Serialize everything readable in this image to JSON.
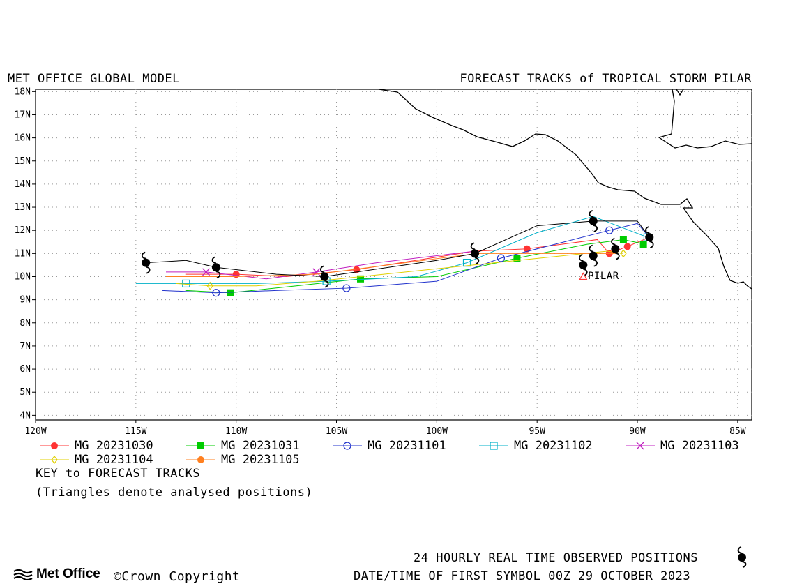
{
  "header": {
    "left_title": "MET OFFICE GLOBAL MODEL",
    "right_title": "FORECAST TRACKS of TROPICAL STORM PILAR"
  },
  "storm_label": "PILAR",
  "legend": {
    "entries": [
      {
        "label": "MG 20231030",
        "color": "#ff3333",
        "marker": "filled-circle"
      },
      {
        "label": "MG 20231031",
        "color": "#00cc00",
        "marker": "filled-square"
      },
      {
        "label": "MG 20231101",
        "color": "#2233cc",
        "marker": "open-circle"
      },
      {
        "label": "MG 20231102",
        "color": "#00b0c8",
        "marker": "open-square"
      },
      {
        "label": "MG 20231103",
        "color": "#c020c0",
        "marker": "cross"
      },
      {
        "label": "MG 20231104",
        "color": "#e0d000",
        "marker": "open-diamond"
      },
      {
        "label": "MG 20231105",
        "color": "#ff8020",
        "marker": "filled-circle"
      }
    ],
    "key_title": "KEY to FORECAST TRACKS",
    "key_note": "(Triangles denote analysed positions)"
  },
  "footer": {
    "observed": "24 HOURLY REAL TIME OBSERVED POSITIONS",
    "datetime": "DATE/TIME OF FIRST SYMBOL 00Z 29 OCTOBER 2023",
    "brand": "Met Office",
    "copyright": "©Crown Copyright"
  },
  "chart_data": {
    "type": "map-tracks",
    "title": "FORECAST TRACKS of TROPICAL STORM PILAR",
    "x_ticks": [
      "120W",
      "115W",
      "110W",
      "105W",
      "100W",
      "95W",
      "90W",
      "85W"
    ],
    "y_ticks": [
      "4N",
      "5N",
      "6N",
      "7N",
      "8N",
      "9N",
      "10N",
      "11N",
      "12N",
      "13N",
      "14N",
      "15N",
      "16N",
      "17N",
      "18N"
    ],
    "lon_range": [
      -120,
      -84.3
    ],
    "lat_range": [
      3.8,
      18.1
    ],
    "grid": true,
    "analysed_position": {
      "lon": -92.7,
      "lat": 10.0
    },
    "observed_track": [
      {
        "lon": -89.4,
        "lat": 11.7
      },
      {
        "lon": -91.1,
        "lat": 11.2
      },
      {
        "lon": -92.2,
        "lat": 10.9
      },
      {
        "lon": -92.7,
        "lat": 10.5
      },
      {
        "lon": -92.2,
        "lat": 12.4
      },
      {
        "lon": -98.1,
        "lat": 11.0
      },
      {
        "lon": -105.6,
        "lat": 10.0
      },
      {
        "lon": -111.0,
        "lat": 10.4
      },
      {
        "lon": -114.5,
        "lat": 10.6
      }
    ],
    "observed_line": [
      [
        -89.4,
        11.7
      ],
      [
        -90.0,
        12.4
      ],
      [
        -92.2,
        12.4
      ],
      [
        -95.0,
        12.2
      ],
      [
        -98.1,
        11.0
      ],
      [
        -100.0,
        10.7
      ],
      [
        -105.6,
        10.0
      ],
      [
        -108.0,
        10.1
      ],
      [
        -111.0,
        10.4
      ],
      [
        -112.5,
        10.7
      ],
      [
        -114.5,
        10.6
      ]
    ],
    "series": [
      {
        "name": "MG 20231030",
        "color": "#ff3333",
        "marker": "filled-circle",
        "line": [
          [
            -89.4,
            11.7
          ],
          [
            -90.5,
            11.3
          ],
          [
            -91.4,
            11.0
          ],
          [
            -92.0,
            11.6
          ],
          [
            -95.5,
            11.2
          ],
          [
            -98.1,
            11.1
          ],
          [
            -104.0,
            10.3
          ],
          [
            -107.5,
            10.0
          ],
          [
            -110.0,
            10.1
          ],
          [
            -112.5,
            10.1
          ]
        ],
        "markers": [
          [
            -90.5,
            11.3
          ],
          [
            -91.4,
            11.0
          ],
          [
            -95.5,
            11.2
          ],
          [
            -98.1,
            11.0
          ],
          [
            -104.0,
            10.3
          ],
          [
            -110.0,
            10.1
          ]
        ]
      },
      {
        "name": "MG 20231031",
        "color": "#00cc00",
        "marker": "filled-square",
        "line": [
          [
            -89.6,
            11.4
          ],
          [
            -90.7,
            11.6
          ],
          [
            -92.5,
            11.4
          ],
          [
            -96.0,
            10.8
          ],
          [
            -100.0,
            10.0
          ],
          [
            -103.8,
            9.9
          ],
          [
            -107.0,
            9.6
          ],
          [
            -110.3,
            9.3
          ],
          [
            -112.5,
            9.4
          ]
        ],
        "markers": [
          [
            -89.7,
            11.4
          ],
          [
            -90.7,
            11.6
          ],
          [
            -96.0,
            10.8
          ],
          [
            -103.8,
            9.9
          ],
          [
            -110.3,
            9.3
          ]
        ]
      },
      {
        "name": "MG 20231101",
        "color": "#2233cc",
        "marker": "open-circle",
        "line": [
          [
            -89.4,
            11.7
          ],
          [
            -90.0,
            12.3
          ],
          [
            -91.4,
            12.0
          ],
          [
            -96.8,
            10.8
          ],
          [
            -100.0,
            9.8
          ],
          [
            -104.5,
            9.5
          ],
          [
            -108.0,
            9.4
          ],
          [
            -111.0,
            9.3
          ],
          [
            -113.7,
            9.4
          ]
        ],
        "markers": [
          [
            -89.4,
            11.7
          ],
          [
            -91.4,
            12.0
          ],
          [
            -96.8,
            10.8
          ],
          [
            -104.5,
            9.5
          ],
          [
            -111.0,
            9.3
          ]
        ]
      },
      {
        "name": "MG 20231102",
        "color": "#00b0c8",
        "marker": "open-square",
        "line": [
          [
            -89.5,
            11.7
          ],
          [
            -92.2,
            12.6
          ],
          [
            -95.0,
            11.9
          ],
          [
            -98.5,
            10.6
          ],
          [
            -101.0,
            10.0
          ],
          [
            -105.5,
            9.8
          ],
          [
            -109.0,
            9.7
          ],
          [
            -112.5,
            9.7
          ],
          [
            -115.0,
            9.7
          ]
        ],
        "markers": [
          [
            -89.5,
            11.7
          ],
          [
            -98.5,
            10.6
          ],
          [
            -105.5,
            9.8
          ],
          [
            -112.5,
            9.7
          ]
        ]
      },
      {
        "name": "MG 20231103",
        "color": "#c020c0",
        "marker": "cross",
        "line": [
          [
            -98.1,
            11.1
          ],
          [
            -103.0,
            10.6
          ],
          [
            -106.0,
            10.2
          ],
          [
            -108.5,
            9.9
          ],
          [
            -111.5,
            10.2
          ],
          [
            -113.5,
            10.2
          ]
        ],
        "markers": [
          [
            -106.0,
            10.2
          ],
          [
            -111.5,
            10.2
          ]
        ]
      },
      {
        "name": "MG 20231104",
        "color": "#e0d000",
        "marker": "open-diamond",
        "line": [
          [
            -90.7,
            11.0
          ],
          [
            -91.5,
            11.1
          ],
          [
            -106.0,
            9.8
          ],
          [
            -109.0,
            9.6
          ],
          [
            -111.3,
            9.6
          ],
          [
            -113.0,
            9.7
          ]
        ],
        "markers": [
          [
            -90.7,
            11.0
          ],
          [
            -111.3,
            9.6
          ]
        ]
      },
      {
        "name": "MG 20231105",
        "color": "#ff8020",
        "marker": "filled-circle",
        "line": [
          [
            -91.0,
            11.0
          ],
          [
            -98.0,
            11.0
          ],
          [
            -106.0,
            10.1
          ],
          [
            -110.0,
            10.0
          ],
          [
            -113.5,
            10.0
          ]
        ],
        "markers": []
      }
    ]
  }
}
